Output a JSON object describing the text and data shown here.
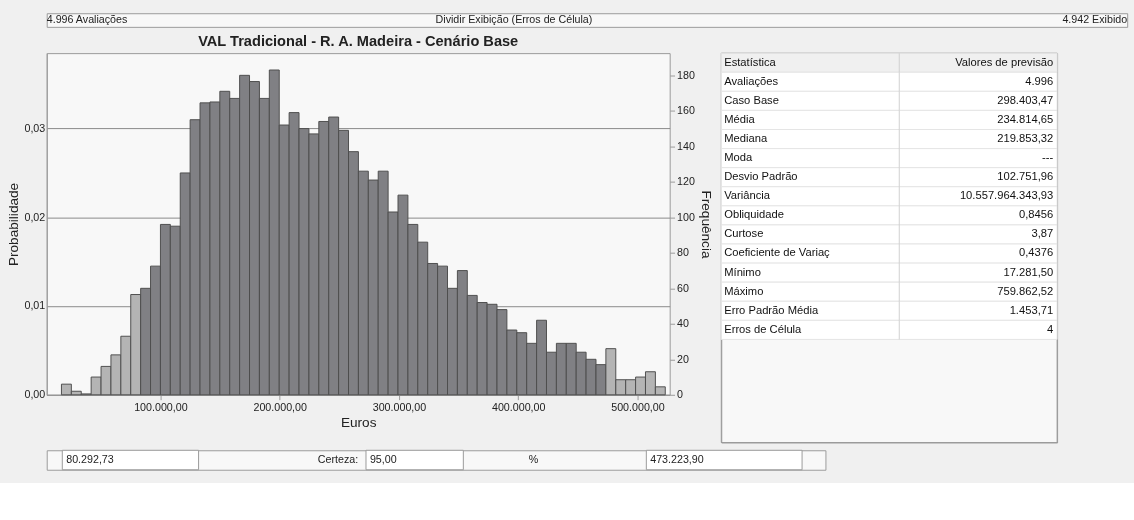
{
  "chart_data": [
    {
      "type": "histogram",
      "title": "VAL Tradicional - R. A. Madeira - Cenário Base",
      "xlabel": "Euros",
      "ylabel": "Probabilidade",
      "y2label": "Frequência",
      "bins": [
        17000,
        25300,
        33600,
        41900,
        50200,
        58500,
        66800,
        75100,
        83400,
        91700,
        100000,
        108300,
        116600,
        124900,
        133200,
        141500,
        149800,
        158100,
        166400,
        174700,
        183000,
        191300,
        199600,
        207900,
        216200,
        224500,
        232800,
        241100,
        249400,
        257700,
        266000,
        274300,
        282600,
        290900,
        299200,
        307500,
        315800,
        324100,
        332400,
        340700,
        349000,
        357300,
        365600,
        373900,
        382200,
        390500,
        398800,
        407100,
        415400,
        423700,
        432000,
        440300,
        448600,
        456900,
        465200,
        473500,
        481800,
        490100,
        498400,
        506700,
        515000,
        523300
      ],
      "values": [
        0.0012,
        0.0004,
        0.0001,
        0.002,
        0.0032,
        0.0045,
        0.0066,
        0.0113,
        0.012,
        0.0145,
        0.0192,
        0.019,
        0.025,
        0.031,
        0.0329,
        0.033,
        0.0342,
        0.0334,
        0.036,
        0.0353,
        0.0334,
        0.0366,
        0.0304,
        0.0318,
        0.03,
        0.0294,
        0.0308,
        0.0313,
        0.0298,
        0.0274,
        0.0252,
        0.0242,
        0.0252,
        0.0206,
        0.0225,
        0.0192,
        0.0172,
        0.0148,
        0.0145,
        0.012,
        0.014,
        0.0112,
        0.0104,
        0.0102,
        0.0096,
        0.0073,
        0.007,
        0.0058,
        0.0084,
        0.0048,
        0.0058,
        0.0058,
        0.0048,
        0.004,
        0.0034,
        0.0052,
        0.0017,
        0.0017,
        0.002,
        0.0026,
        0.0009
      ],
      "colors": [
        "#b4b4b4",
        "#b4b4b4",
        "#b4b4b4",
        "#b4b4b4",
        "#b4b4b4",
        "#b4b4b4",
        "#b4b4b4",
        "#b4b4b4",
        "#808084",
        "#808084",
        "#808084",
        "#808084",
        "#808084",
        "#808084",
        "#808084",
        "#808084",
        "#808084",
        "#808084",
        "#808084",
        "#808084",
        "#808084",
        "#808084",
        "#808084",
        "#808084",
        "#808084",
        "#808084",
        "#808084",
        "#808084",
        "#808084",
        "#808084",
        "#808084",
        "#808084",
        "#808084",
        "#808084",
        "#808084",
        "#808084",
        "#808084",
        "#808084",
        "#808084",
        "#808084",
        "#808084",
        "#808084",
        "#808084",
        "#808084",
        "#808084",
        "#808084",
        "#808084",
        "#808084",
        "#808084",
        "#808084",
        "#808084",
        "#808084",
        "#808084",
        "#808084",
        "#808084",
        "#b4b4b4",
        "#b4b4b4",
        "#b4b4b4",
        "#b4b4b4",
        "#b4b4b4",
        "#b4b4b4"
      ],
      "xlim": [
        4650,
        527000
      ],
      "xticks": [
        {
          "value": 100000,
          "label": "100.000,00"
        },
        {
          "value": 200000,
          "label": "200.000,00"
        },
        {
          "value": 300000,
          "label": "300.000,00"
        },
        {
          "value": 400000,
          "label": "400.000,00"
        },
        {
          "value": 500000,
          "label": "500.000,00"
        }
      ],
      "ylim": [
        0,
        0.0385
      ],
      "yticks": [
        {
          "value": 0,
          "label": "0,00"
        },
        {
          "value": 0.01,
          "label": "0,01"
        },
        {
          "value": 0.02,
          "label": "0,02"
        },
        {
          "value": 0.03,
          "label": "0,03"
        }
      ],
      "y2lim": [
        0,
        192.4
      ],
      "y2ticks": [
        0,
        20,
        40,
        60,
        80,
        100,
        120,
        140,
        160,
        180
      ],
      "grid": "y",
      "annotations": [
        "4.996 Avaliações",
        "Dividir Exibição (Erros de Célula)",
        "4.942 Exibido",
        "80.292,73",
        "Certeza:",
        "95,00",
        "%",
        "473.223,90"
      ]
    },
    {
      "type": "other",
      "annotations": [
        "Estatística",
        "Valores de previsão",
        "Avaliações",
        "4.996",
        "Caso Base",
        "298.403,47",
        "Média",
        "234.814,65",
        "Mediana",
        "219.853,32",
        "Moda",
        "---",
        "Desvio Padrão",
        "102.751,96",
        "Variância",
        "10.557.964.343,93",
        "Obliquidade",
        "0,8456",
        "Curtose",
        "3,87",
        "Coeficiente de Variaç",
        "0,4376",
        "Mínimo",
        "17.281,50",
        "Máximo",
        "759.862,52",
        "Erro Padrão Média",
        "1.453,71",
        "Erros de Célula",
        "4"
      ]
    }
  ]
}
